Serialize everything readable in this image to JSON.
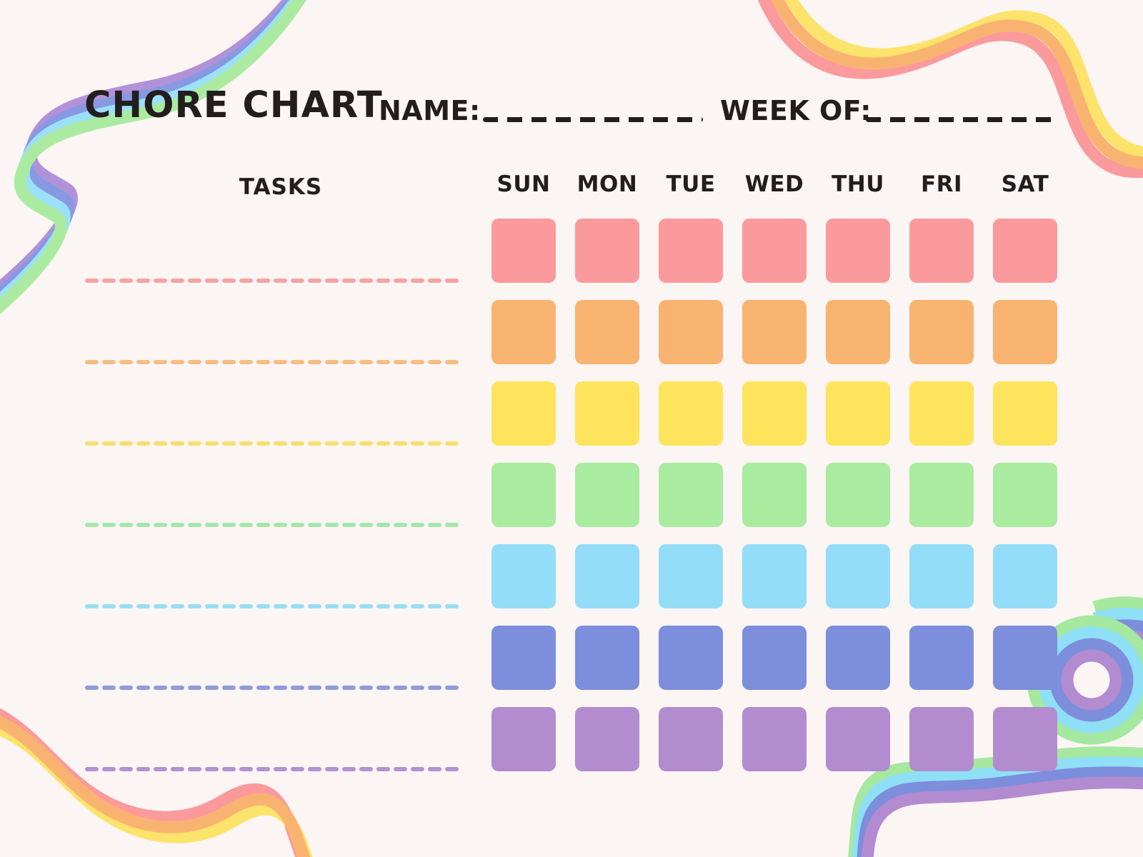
{
  "page": {
    "background": "#FBF5F3",
    "text_color": "#221E1E"
  },
  "header": {
    "title": "CHORE CHART",
    "name_label": "NAME:",
    "name_value": "",
    "week_label": "WEEK OF:",
    "week_value": ""
  },
  "table": {
    "tasks_header": "TASKS",
    "day_headers": [
      "SUN",
      "MON",
      "TUE",
      "WED",
      "THU",
      "FRI",
      "SAT"
    ],
    "rows": [
      {
        "color": "#FB9A9C",
        "dash_color": "#F6A2A3",
        "task": ""
      },
      {
        "color": "#F9B371",
        "dash_color": "#F6BE82",
        "task": ""
      },
      {
        "color": "#FDE45C",
        "dash_color": "#F8DF6E",
        "task": ""
      },
      {
        "color": "#A9EB9F",
        "dash_color": "#A6E6A9",
        "task": ""
      },
      {
        "color": "#94DDF8",
        "dash_color": "#96DFF3",
        "task": ""
      },
      {
        "color": "#7C8EDC",
        "dash_color": "#8D9CDF",
        "task": ""
      },
      {
        "color": "#B38CCF",
        "dash_color": "#AF93D3",
        "task": ""
      }
    ]
  },
  "decorations": {
    "top_left_ribbon_colors": [
      "#B192D8",
      "#8799E2",
      "#9BE1F9",
      "#ABEBA1"
    ],
    "top_right_ribbon_colors": [
      "#FCE36B",
      "#F9B371",
      "#FB9A9C"
    ],
    "bottom_left_ribbon_colors": [
      "#FB9A9C",
      "#F9B371",
      "#FCE36B"
    ],
    "bottom_right_ribbon_colors": [
      "#A5E89F",
      "#8FDFF7",
      "#7C8EDC",
      "#B28BD0"
    ]
  }
}
